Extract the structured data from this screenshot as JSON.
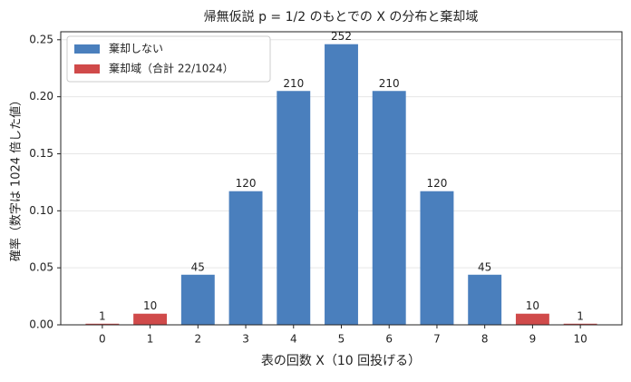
{
  "chart_data": {
    "type": "bar",
    "title": "帰無仮説 p = 1/2 のもとでの X の分布と棄却域",
    "xlabel": "表の回数 X（10 回投げる）",
    "ylabel": "確率（数字は 1024 倍した値）",
    "categories": [
      "0",
      "1",
      "2",
      "3",
      "4",
      "5",
      "6",
      "7",
      "8",
      "9",
      "10"
    ],
    "series": [
      {
        "name": "棄却しない",
        "color": "#4a7fbd",
        "values": [
          null,
          null,
          0.0439453125,
          0.1171875,
          0.205078125,
          0.24609375,
          0.205078125,
          0.1171875,
          0.0439453125,
          null,
          null
        ],
        "value_labels": [
          null,
          null,
          "45",
          "120",
          "210",
          "252",
          "210",
          "120",
          "45",
          null,
          null
        ]
      },
      {
        "name": "棄却域（合計 22/1024）",
        "color": "#d04a4a",
        "values": [
          0.0009765625,
          0.009765625,
          null,
          null,
          null,
          null,
          null,
          null,
          null,
          0.009765625,
          0.0009765625
        ],
        "value_labels": [
          "1",
          "10",
          null,
          null,
          null,
          null,
          null,
          null,
          null,
          "10",
          "1"
        ]
      }
    ],
    "ylim": [
      0,
      0.257
    ],
    "yticks": [
      {
        "value": 0,
        "label": "0.00"
      },
      {
        "value": 0.05,
        "label": "0.05"
      },
      {
        "value": 0.1,
        "label": "0.10"
      },
      {
        "value": 0.15,
        "label": "0.15"
      },
      {
        "value": 0.2,
        "label": "0.20"
      },
      {
        "value": 0.25,
        "label": "0.25"
      }
    ],
    "grid": true,
    "legend": "upper-left"
  }
}
